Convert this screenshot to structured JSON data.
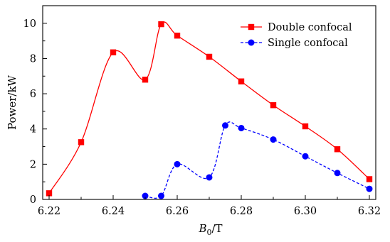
{
  "chart_data": {
    "type": "line",
    "xlabel": "B0/T",
    "xlabel_base": "B",
    "xlabel_sub": "0",
    "xlabel_unit": "/T",
    "ylabel": "Power/kW",
    "xlim": [
      6.218,
      6.322
    ],
    "ylim": [
      0,
      11
    ],
    "x_ticks": [
      6.22,
      6.24,
      6.26,
      6.28,
      6.3,
      6.32
    ],
    "x_tick_labels": [
      "6.22",
      "6.24",
      "6.26",
      "6.28",
      "6.30",
      "6.32"
    ],
    "y_ticks": [
      0,
      2,
      4,
      6,
      8,
      10
    ],
    "y_tick_labels": [
      "0",
      "2",
      "4",
      "6",
      "8",
      "10"
    ],
    "grid": false,
    "legend_position": "top-right",
    "series": [
      {
        "name": "Double confocal",
        "color": "#ff0000",
        "marker": "square",
        "line_style": "solid",
        "x": [
          6.22,
          6.23,
          6.24,
          6.25,
          6.255,
          6.26,
          6.27,
          6.28,
          6.29,
          6.3,
          6.31,
          6.32
        ],
        "y": [
          0.35,
          3.25,
          8.35,
          6.8,
          9.95,
          9.3,
          8.1,
          6.7,
          5.35,
          4.15,
          2.85,
          1.15
        ]
      },
      {
        "name": "Single confocal",
        "color": "#0000ff",
        "marker": "circle",
        "line_style": "dashed",
        "x": [
          6.25,
          6.255,
          6.26,
          6.27,
          6.275,
          6.28,
          6.29,
          6.3,
          6.31,
          6.32
        ],
        "y": [
          0.2,
          0.2,
          2.0,
          1.25,
          4.2,
          4.05,
          3.4,
          2.45,
          1.5,
          0.6
        ]
      }
    ]
  }
}
